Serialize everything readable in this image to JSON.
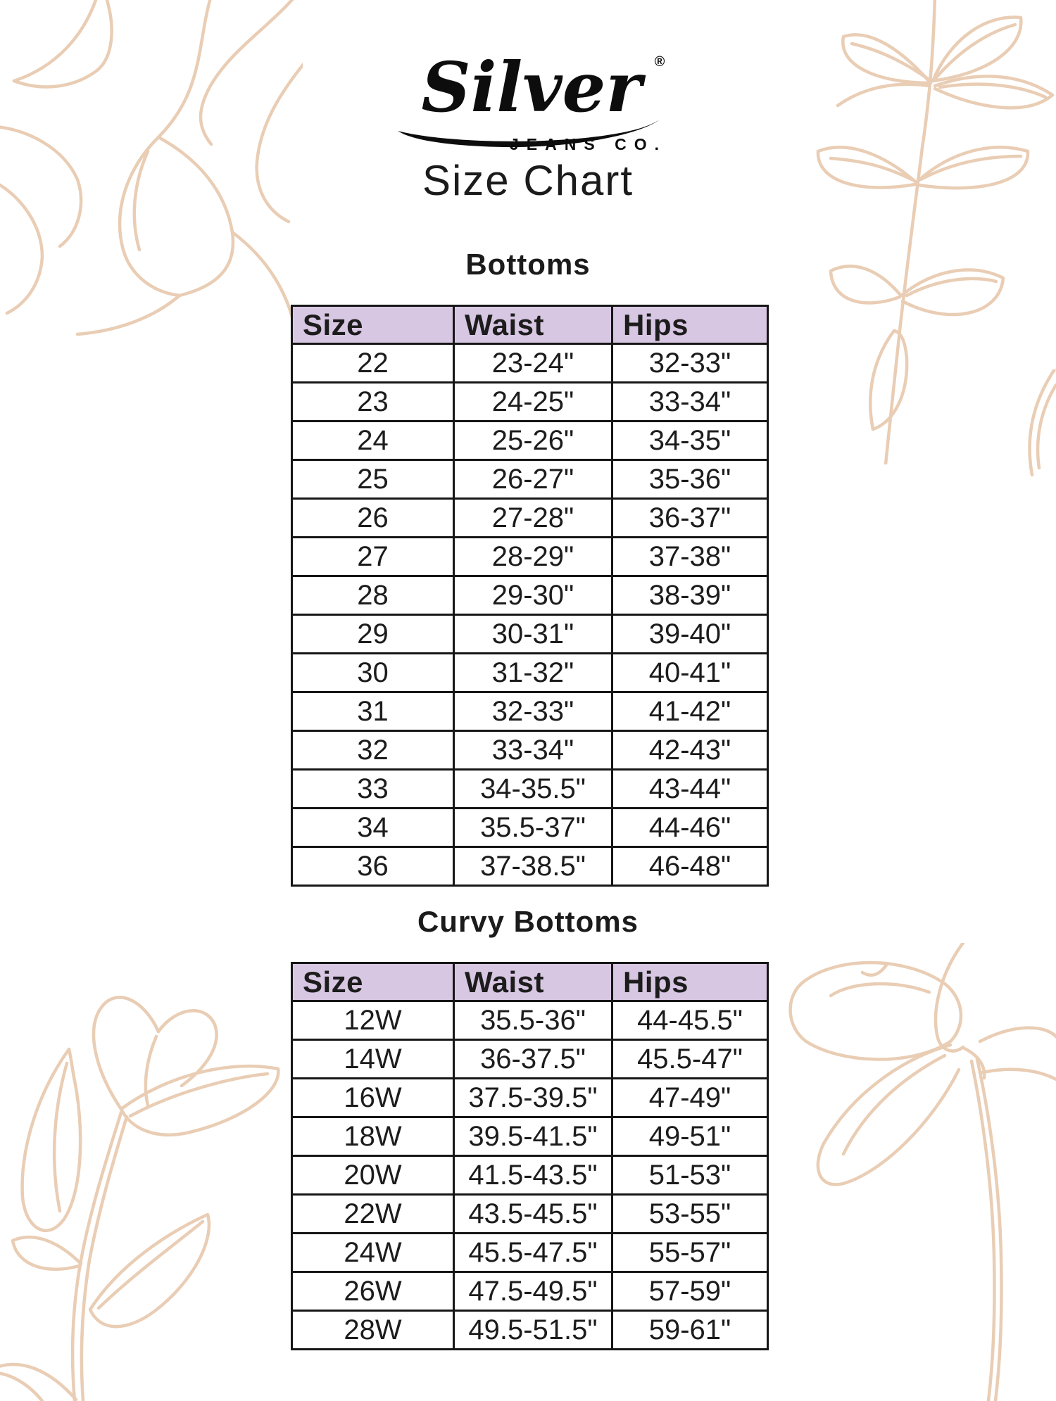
{
  "page": {
    "title": "Size Chart"
  },
  "logo": {
    "brand": "Silver",
    "registered": "®",
    "subtitle": "JEANS CO."
  },
  "colors": {
    "table_header_bg": "#d8c7e3",
    "table_border": "#161616",
    "text": "#1c1c1c",
    "floral_line_art": "#e9cdb4",
    "logo_black": "#0d0d0d",
    "background": "#ffffff"
  },
  "sections": [
    {
      "heading": "Bottoms",
      "columns": [
        "Size",
        "Waist",
        "Hips"
      ],
      "rows": [
        [
          "22",
          "23-24\"",
          "32-33\""
        ],
        [
          "23",
          "24-25\"",
          "33-34\""
        ],
        [
          "24",
          "25-26\"",
          "34-35\""
        ],
        [
          "25",
          "26-27\"",
          "35-36\""
        ],
        [
          "26",
          "27-28\"",
          "36-37\""
        ],
        [
          "27",
          "28-29\"",
          "37-38\""
        ],
        [
          "28",
          "29-30\"",
          "38-39\""
        ],
        [
          "29",
          "30-31\"",
          "39-40\""
        ],
        [
          "30",
          "31-32\"",
          "40-41\""
        ],
        [
          "31",
          "32-33\"",
          "41-42\""
        ],
        [
          "32",
          "33-34\"",
          "42-43\""
        ],
        [
          "33",
          "34-35.5\"",
          "43-44\""
        ],
        [
          "34",
          "35.5-37\"",
          "44-46\""
        ],
        [
          "36",
          "37-38.5\"",
          "46-48\""
        ]
      ]
    },
    {
      "heading": "Curvy Bottoms",
      "columns": [
        "Size",
        "Waist",
        "Hips"
      ],
      "rows": [
        [
          "12W",
          "35.5-36\"",
          "44-45.5\""
        ],
        [
          "14W",
          "36-37.5\"",
          "45.5-47\""
        ],
        [
          "16W",
          "37.5-39.5\"",
          "47-49\""
        ],
        [
          "18W",
          "39.5-41.5\"",
          "49-51\""
        ],
        [
          "20W",
          "41.5-43.5\"",
          "51-53\""
        ],
        [
          "22W",
          "43.5-45.5\"",
          "53-55\""
        ],
        [
          "24W",
          "45.5-47.5\"",
          "55-57\""
        ],
        [
          "26W",
          "47.5-49.5\"",
          "57-59\""
        ],
        [
          "28W",
          "49.5-51.5\"",
          "59-61\""
        ]
      ]
    }
  ]
}
